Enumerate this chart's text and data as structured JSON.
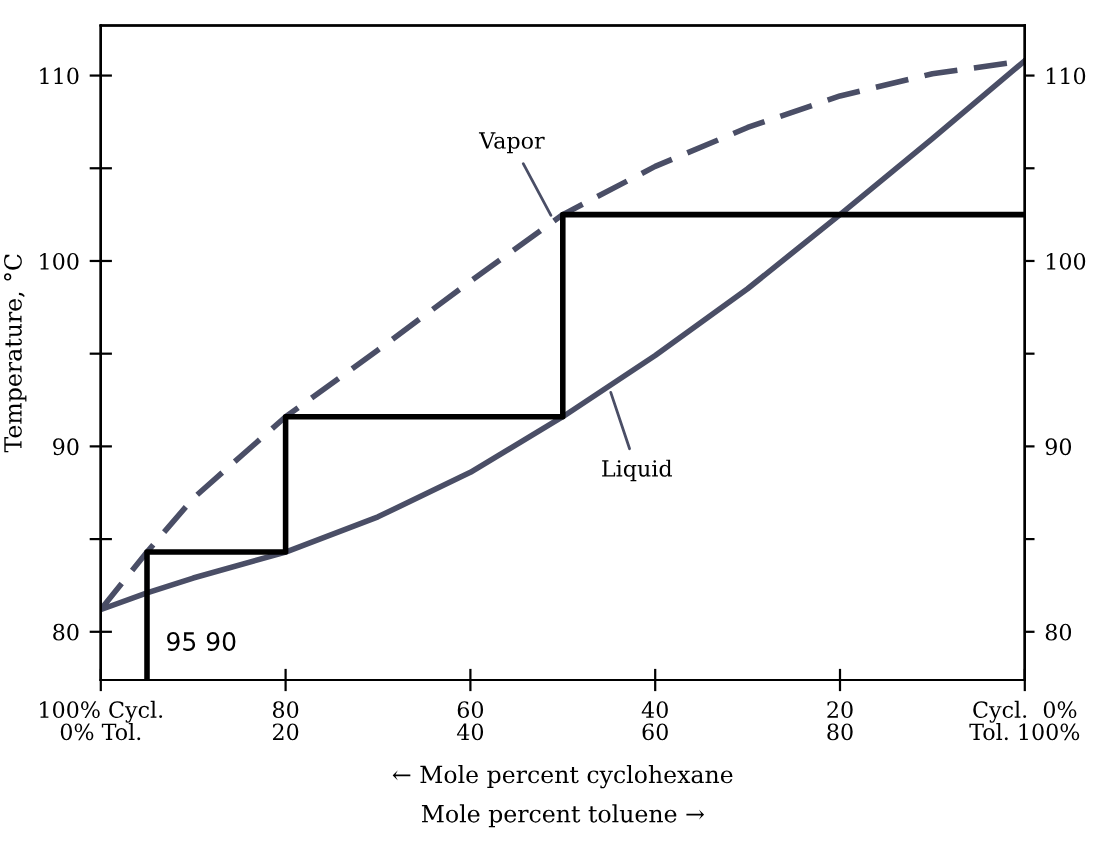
{
  "chart_data": {
    "type": "line",
    "ylabel": "Temperature, °C",
    "xlabel": "← Mole percent cyclohexane",
    "xlim": [
      100,
      0
    ],
    "xticks": [
      {
        "value": 100,
        "label": "100% Cycl."
      },
      80,
      60,
      40,
      20,
      {
        "value": 0,
        "label": "Cycl.  0%"
      }
    ],
    "x2label": "Mole percent toluene →",
    "x2lim": [
      0,
      100
    ],
    "x2ticks": [
      {
        "value": 0,
        "label": "0% Tol."
      },
      20,
      40,
      60,
      80,
      {
        "value": 100,
        "label": "Tol. 100%"
      }
    ],
    "ylim": [
      77.4,
      112.7
    ],
    "yticks": [
      80,
      {
        "value": 85,
        "label": null
      },
      90,
      {
        "value": 95,
        "label": null
      },
      100,
      {
        "value": 105,
        "label": null
      },
      110
    ],
    "y2lim": [
      77.4,
      112.7
    ],
    "y2ticks": [
      80,
      {
        "value": 85,
        "label": null
      },
      90,
      {
        "value": 95,
        "label": null
      },
      100,
      {
        "value": 105,
        "label": null
      },
      110
    ],
    "series": [
      {
        "color": "#4a4e66",
        "line_style": "dashed",
        "x": [
          100,
          95,
          90,
          80,
          70,
          60,
          50,
          40,
          30,
          20,
          10,
          0
        ],
        "values": [
          81.2,
          84.3,
          87.2,
          91.6,
          95.2,
          98.9,
          102.5,
          105.1,
          107.2,
          108.9,
          110.1,
          110.8
        ]
      },
      {
        "color": "#4a4e66",
        "line_style": "solid",
        "x": [
          100,
          95,
          90,
          80,
          70,
          60,
          50,
          40,
          30,
          20,
          10,
          0
        ],
        "values": [
          81.2,
          82.1,
          82.9,
          84.3,
          86.2,
          88.6,
          91.6,
          94.9,
          98.5,
          102.5,
          106.6,
          110.8
        ]
      },
      {
        "color": "#000000",
        "line_style": "solid",
        "x": [
          95,
          95,
          80,
          80,
          50,
          50,
          0
        ],
        "values": [
          77.4,
          84.3,
          84.3,
          91.6,
          91.6,
          102.5,
          102.5
        ]
      }
    ],
    "annotations": [
      {
        "text": "Vapor",
        "x": 51,
        "y": 102.2
      },
      {
        "text": "Liquid",
        "x": 45,
        "y": 93.2
      },
      "95 90"
    ],
    "grid": false,
    "legend": false
  }
}
